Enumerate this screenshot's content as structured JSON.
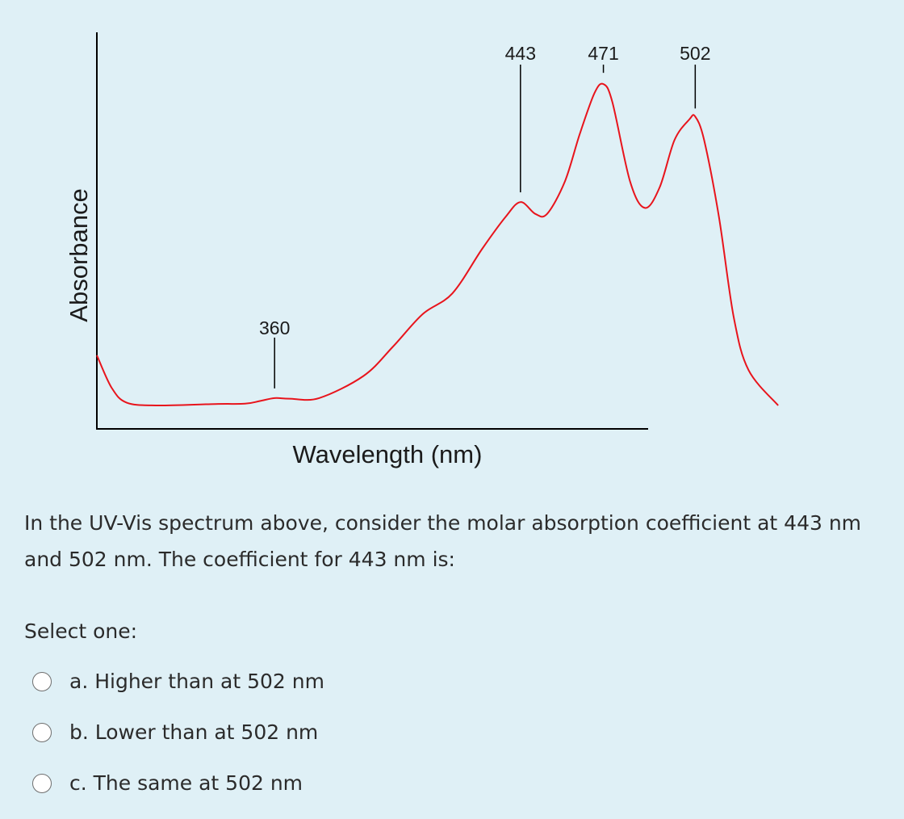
{
  "colors": {
    "background": "#dff0f6",
    "spectrum_line": "#e8141c",
    "axis": "#000000"
  },
  "chart_data": {
    "type": "line",
    "xlabel": "Wavelength (nm)",
    "ylabel": "Absorbance",
    "grid": false,
    "annotations": [
      "360",
      "443",
      "471",
      "502"
    ],
    "peaks_nm": [
      360,
      443,
      471,
      502
    ],
    "series": [
      {
        "x": [
          300,
          305,
          310,
          320,
          340,
          350,
          355,
          360,
          365,
          375,
          390,
          400,
          410,
          420,
          430,
          438,
          443,
          448,
          452,
          458,
          463,
          468,
          471,
          474,
          480,
          485,
          490,
          495,
          500,
          502,
          505,
          510,
          515,
          520,
          530
        ],
        "values": [
          0.17,
          0.06,
          0.01,
          0.0,
          0.005,
          0.006,
          0.015,
          0.025,
          0.023,
          0.025,
          0.1,
          0.2,
          0.31,
          0.38,
          0.53,
          0.64,
          0.69,
          0.65,
          0.65,
          0.76,
          0.92,
          1.06,
          1.09,
          1.03,
          0.76,
          0.67,
          0.74,
          0.9,
          0.97,
          0.98,
          0.9,
          0.64,
          0.3,
          0.12,
          0.0
        ]
      }
    ]
  },
  "question": {
    "text": "In the UV-Vis spectrum above, consider the molar absorption coefficient at 443 nm and 502 nm. The coefficient for 443 nm is:",
    "select_label": "Select one:",
    "options": [
      {
        "label": "a. Higher than at 502 nm",
        "selected": false
      },
      {
        "label": "b. Lower than at 502 nm",
        "selected": false
      },
      {
        "label": "c. The same at 502 nm",
        "selected": false
      }
    ]
  }
}
